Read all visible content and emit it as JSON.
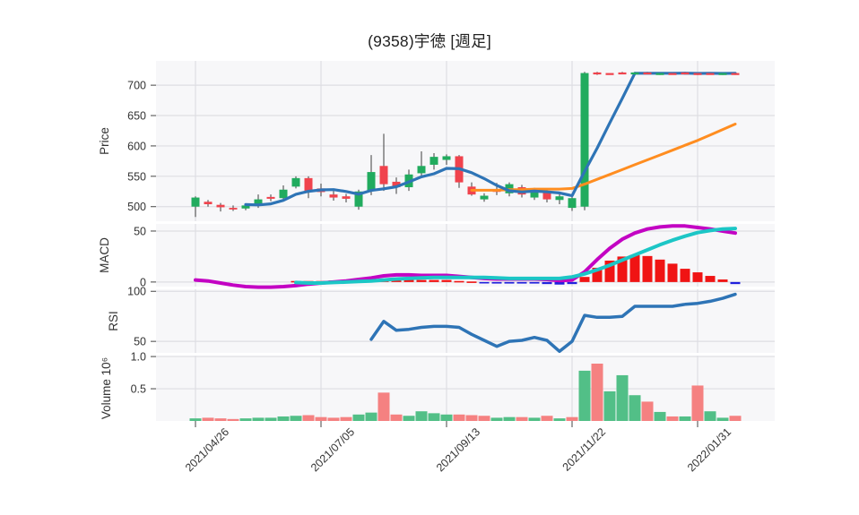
{
  "title": "(9358)宇徳  [週足]",
  "colors": {
    "up_candle": "#21ab5e",
    "down_candle": "#f0434d",
    "wick": "#3d3d3d",
    "volume_up": "#52bf87",
    "volume_down": "#f58181",
    "ma_short": "#2e74b6",
    "ma_long": "#ff8d20",
    "macd_line": "#c303c3",
    "macd_signal": "#1cc6c6",
    "hist_positive": "#f01414",
    "hist_negative": "#2121dd",
    "rsi_line": "#2e74b6",
    "plot_background": "#f7f7f9",
    "gridline": "#dedee3",
    "axis_text": "#333333",
    "title_text": "#222222"
  },
  "axes": {
    "x_tick_labels": [
      "2021/04/26",
      "2021/07/05",
      "2021/09/13",
      "2021/11/22",
      "2022/01/31"
    ],
    "x_tick_indices": [
      0,
      10,
      20,
      30,
      40
    ],
    "price_tick_labels": [
      "700",
      "650",
      "600",
      "550",
      "500"
    ],
    "price_tick_values": [
      700,
      650,
      600,
      550,
      500
    ],
    "macd_tick_labels": [
      "50",
      "0"
    ],
    "macd_tick_values": [
      50,
      0
    ],
    "rsi_tick_labels": [
      "100",
      "50"
    ],
    "rsi_tick_values": [
      100,
      50
    ],
    "volume_tick_labels": [
      "1.0",
      "0.5"
    ],
    "volume_tick_values": [
      1.0,
      0.5
    ],
    "axis_titles": {
      "price": "Price",
      "macd": "MACD",
      "rsi": "RSI",
      "volume": "Volume  10⁶"
    }
  },
  "chart_data": {
    "type": "candlestick",
    "timeframe": "weekly",
    "num_weeks": 44,
    "price_panel": {
      "ylabel": "Price",
      "yrange": [
        476,
        740
      ],
      "open": [
        500,
        508,
        503,
        498,
        497,
        502,
        516,
        514,
        533,
        547,
        530,
        520,
        517,
        500,
        526,
        567,
        541,
        532,
        555,
        569,
        577,
        583,
        533,
        512,
        527,
        522,
        532,
        515,
        524,
        511,
        498,
        500,
        721,
        720,
        721,
        719,
        721,
        719,
        720,
        721,
        720,
        720,
        719,
        720
      ],
      "high": [
        517,
        511,
        506,
        502,
        504,
        520,
        520,
        535,
        550,
        550,
        538,
        526,
        521,
        528,
        585,
        620,
        548,
        561,
        591,
        588,
        586,
        585,
        540,
        522,
        539,
        540,
        536,
        531,
        528,
        521,
        517,
        722,
        722,
        721,
        722,
        722,
        722,
        721,
        721,
        722,
        721,
        721,
        721,
        721
      ],
      "low": [
        483,
        500,
        492,
        493,
        494,
        498,
        509,
        512,
        530,
        514,
        517,
        510,
        507,
        495,
        519,
        526,
        521,
        526,
        548,
        561,
        569,
        531,
        518,
        508,
        519,
        517,
        515,
        511,
        507,
        504,
        493,
        494,
        717,
        718,
        718,
        717,
        718,
        717,
        718,
        718,
        717,
        718,
        717,
        717
      ],
      "close": [
        515,
        504,
        499,
        497,
        502,
        512,
        513,
        528,
        547,
        526,
        524,
        515,
        513,
        525,
        557,
        537,
        532,
        553,
        567,
        582,
        583,
        540,
        520,
        518,
        526,
        537,
        520,
        527,
        512,
        517,
        514,
        720,
        719,
        719,
        719,
        721,
        719,
        720,
        719,
        720,
        719,
        719,
        720,
        719
      ],
      "ma_short": {
        "start_index": 4,
        "values": [
          503.4,
          502.8,
          504.6,
          510.4,
          520.4,
          525.2,
          527.6,
          528,
          525,
          520.6,
          526.8,
          529.4,
          532.8,
          540.8,
          549.2,
          554.2,
          563,
          562.6,
          556,
          546.2,
          535,
          526.2,
          524.2,
          525.6,
          524.4,
          522.6,
          518,
          558,
          596.4,
          637.8,
          678.2,
          719.6,
          719.6,
          719.6,
          719.6,
          719.8,
          719.4,
          719.6,
          719.4,
          719.6
        ]
      },
      "ma_long": {
        "start_index": 22,
        "values": [
          527,
          527,
          527,
          528,
          528,
          529,
          529,
          529,
          530,
          537,
          545,
          553,
          561,
          569,
          577,
          585,
          593,
          601,
          609,
          618,
          627,
          636
        ]
      }
    },
    "macd_panel": {
      "ylabel": "MACD",
      "yrange": [
        -4.5,
        57
      ],
      "macd": {
        "start_index": 0,
        "values": [
          2,
          1,
          -1,
          -3,
          -4.5,
          -5,
          -5,
          -4.5,
          -3.5,
          -2,
          -1,
          0,
          1,
          2.5,
          4,
          6,
          7,
          7,
          6.5,
          6.5,
          6.5,
          5.5,
          4.5,
          3.5,
          3,
          3,
          3,
          3,
          2.5,
          1.5,
          2,
          10,
          22,
          33,
          42,
          48,
          52,
          54,
          55,
          55,
          53.5,
          52,
          50,
          48
        ]
      },
      "signal": {
        "start_index": 8,
        "values": [
          -0.5,
          -1,
          -1,
          -0.5,
          0,
          0.5,
          1,
          2,
          3,
          3.5,
          4,
          4.5,
          4.5,
          4.5,
          4.5,
          4.5,
          4,
          3.5,
          3.5,
          3.5,
          3.5,
          3.5,
          5,
          8,
          12,
          16.5,
          21.5,
          26.5,
          31.5,
          36.5,
          41,
          45,
          48.5,
          50.5,
          52,
          52.5
        ]
      },
      "histogram": {
        "start_index": 8,
        "values": [
          1,
          1,
          1,
          1.5,
          2,
          2.5,
          2,
          2.5,
          3,
          3,
          2,
          2,
          2,
          1,
          0.5,
          -0.5,
          -1.5,
          -1.5,
          -1.5,
          -1.5,
          -2,
          -2.5,
          -2,
          5,
          14,
          21,
          25,
          26.5,
          25.5,
          22,
          18,
          13,
          9.5,
          6,
          2.5,
          -2
        ]
      }
    },
    "rsi_panel": {
      "ylabel": "RSI",
      "yrange": [
        38.5,
        102
      ],
      "rsi": {
        "start_index": 14,
        "values": [
          52,
          70,
          61,
          62,
          64,
          65,
          65,
          64,
          57,
          51,
          45,
          50,
          51,
          54,
          51,
          40,
          50,
          76,
          74,
          74,
          75,
          85,
          85,
          85,
          85,
          87,
          88,
          90,
          93,
          97
        ]
      }
    },
    "volume_panel": {
      "ylabel": "Volume  10⁶",
      "yrange": [
        0,
        1.015
      ],
      "values": [
        0.04,
        0.05,
        0.04,
        0.03,
        0.04,
        0.05,
        0.05,
        0.07,
        0.08,
        0.09,
        0.06,
        0.05,
        0.06,
        0.1,
        0.13,
        0.44,
        0.1,
        0.08,
        0.15,
        0.12,
        0.1,
        0.1,
        0.09,
        0.08,
        0.05,
        0.06,
        0.06,
        0.05,
        0.08,
        0.04,
        0.06,
        0.78,
        0.89,
        0.46,
        0.71,
        0.4,
        0.3,
        0.14,
        0.07,
        0.07,
        0.55,
        0.15,
        0.05,
        0.08
      ]
    }
  }
}
